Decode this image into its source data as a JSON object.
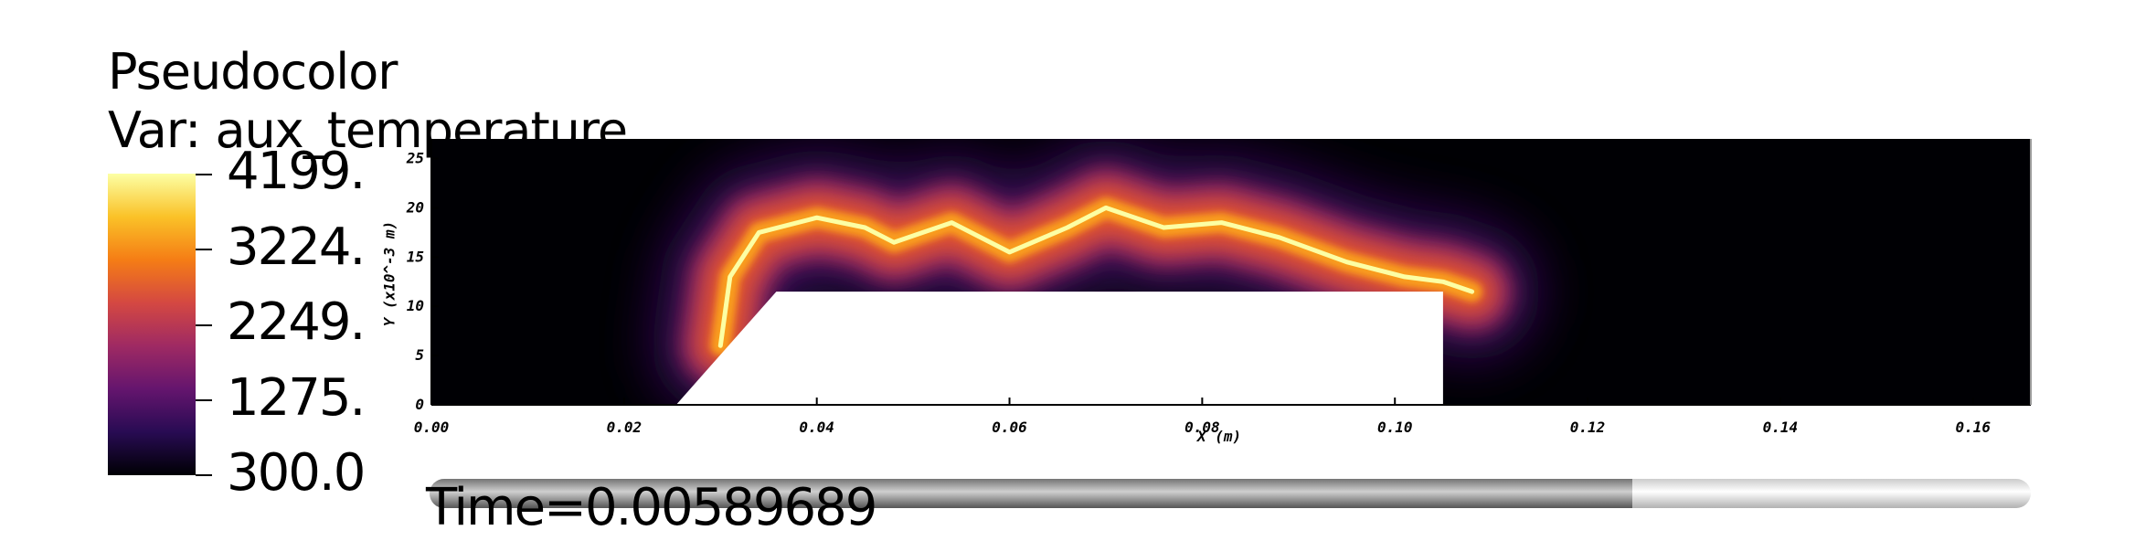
{
  "legend": {
    "title": "Pseudocolor",
    "var_label": "Var: aux_temperature",
    "ticks": [
      "4199.",
      "3224.",
      "2249.",
      "1275.",
      "300.0"
    ],
    "colormap": [
      "#fcffa4",
      "#fac228",
      "#f57d15",
      "#d44842",
      "#9f2a63",
      "#65156e",
      "#280b53",
      "#000004"
    ]
  },
  "time_label": "Time=0.00589689",
  "time_slider": {
    "progress": 0.75
  },
  "chart_data": {
    "type": "heatmap",
    "variable": "aux_temperature",
    "color_range": [
      300.0,
      4199.0
    ],
    "xlabel": "X (m)",
    "ylabel": "Y (x10^-3 m)",
    "xlim": [
      0.0,
      0.166
    ],
    "ylim": [
      0,
      27
    ],
    "x_ticks": [
      "0.00",
      "0.02",
      "0.04",
      "0.06",
      "0.08",
      "0.10",
      "0.12",
      "0.14",
      "0.16"
    ],
    "y_ticks": [
      "0",
      "5",
      "10",
      "15",
      "20",
      "25"
    ],
    "obstacle": [
      [
        0.0254,
        0
      ],
      [
        0.0358,
        11.5
      ],
      [
        0.105,
        11.5
      ],
      [
        0.105,
        0
      ]
    ],
    "flame_front": {
      "x": [
        0.03,
        0.031,
        0.034,
        0.04,
        0.045,
        0.048,
        0.054,
        0.06,
        0.066,
        0.07,
        0.076,
        0.082,
        0.088,
        0.095,
        0.101,
        0.105,
        0.108
      ],
      "y": [
        6.0,
        13.0,
        17.5,
        19.0,
        18.0,
        16.5,
        18.5,
        15.5,
        18.0,
        20.0,
        18.0,
        18.5,
        17.0,
        14.5,
        13.0,
        12.5,
        11.5
      ]
    }
  }
}
